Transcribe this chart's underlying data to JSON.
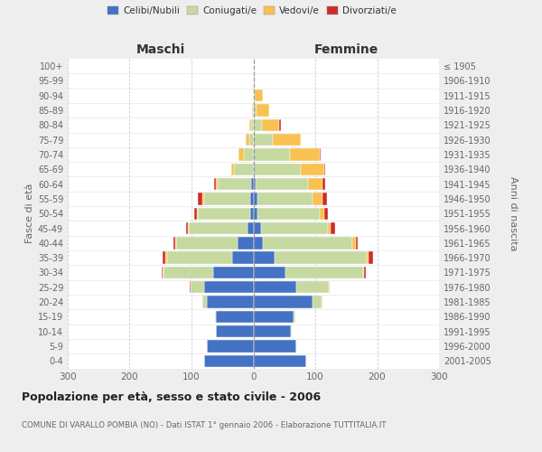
{
  "age_groups": [
    "0-4",
    "5-9",
    "10-14",
    "15-19",
    "20-24",
    "25-29",
    "30-34",
    "35-39",
    "40-44",
    "45-49",
    "50-54",
    "55-59",
    "60-64",
    "65-69",
    "70-74",
    "75-79",
    "80-84",
    "85-89",
    "90-94",
    "95-99",
    "100+"
  ],
  "birth_years": [
    "2001-2005",
    "1996-2000",
    "1991-1995",
    "1986-1990",
    "1981-1985",
    "1976-1980",
    "1971-1975",
    "1966-1970",
    "1961-1965",
    "1956-1960",
    "1951-1955",
    "1946-1950",
    "1941-1945",
    "1936-1940",
    "1931-1935",
    "1926-1930",
    "1921-1925",
    "1916-1920",
    "1911-1915",
    "1906-1910",
    "≤ 1905"
  ],
  "maschi_celibi": [
    80,
    75,
    60,
    60,
    75,
    80,
    65,
    35,
    25,
    10,
    5,
    5,
    3,
    1,
    1,
    0,
    0,
    0,
    0,
    0,
    0
  ],
  "maschi_coniugati": [
    0,
    0,
    1,
    2,
    8,
    22,
    80,
    105,
    100,
    95,
    85,
    75,
    55,
    30,
    15,
    7,
    3,
    1,
    0,
    0,
    0
  ],
  "maschi_vedovi": [
    0,
    0,
    0,
    0,
    0,
    0,
    1,
    2,
    2,
    1,
    1,
    2,
    3,
    5,
    8,
    6,
    4,
    1,
    0,
    0,
    0
  ],
  "maschi_divorziati": [
    0,
    0,
    0,
    0,
    0,
    1,
    2,
    5,
    2,
    3,
    4,
    8,
    2,
    0,
    0,
    0,
    0,
    0,
    0,
    0,
    0
  ],
  "femmine_nubili": [
    85,
    70,
    60,
    65,
    95,
    70,
    52,
    35,
    15,
    12,
    7,
    6,
    4,
    1,
    1,
    0,
    0,
    0,
    0,
    0,
    0
  ],
  "femmine_coniugate": [
    0,
    0,
    2,
    3,
    15,
    52,
    125,
    148,
    145,
    108,
    100,
    90,
    85,
    75,
    58,
    32,
    14,
    5,
    2,
    0,
    0
  ],
  "femmine_vedove": [
    0,
    0,
    0,
    0,
    1,
    1,
    2,
    3,
    5,
    5,
    8,
    16,
    22,
    38,
    48,
    45,
    28,
    20,
    14,
    2,
    0
  ],
  "femmine_divorziate": [
    0,
    0,
    0,
    0,
    0,
    0,
    3,
    7,
    3,
    7,
    6,
    7,
    5,
    2,
    2,
    0,
    2,
    0,
    0,
    0,
    0
  ],
  "color_celibi": "#4472C4",
  "color_coniugati": "#C5D9A0",
  "color_vedovi": "#F9C152",
  "color_divorziati": "#D12B26",
  "xlim": 300,
  "title": "Popolazione per età, sesso e stato civile - 2006",
  "subtitle": "COMUNE DI VARALLO POMBIA (NO) - Dati ISTAT 1° gennaio 2006 - Elaborazione TUTTITALIA.IT",
  "ylabel_left": "Fasce di età",
  "ylabel_right": "Anni di nascita",
  "maschi_label": "Maschi",
  "femmine_label": "Femmine",
  "legend_labels": [
    "Celibi/Nubili",
    "Coniugati/e",
    "Vedovi/e",
    "Divorziati/e"
  ],
  "bg_color": "#eeeeee",
  "plot_bg": "#ffffff"
}
